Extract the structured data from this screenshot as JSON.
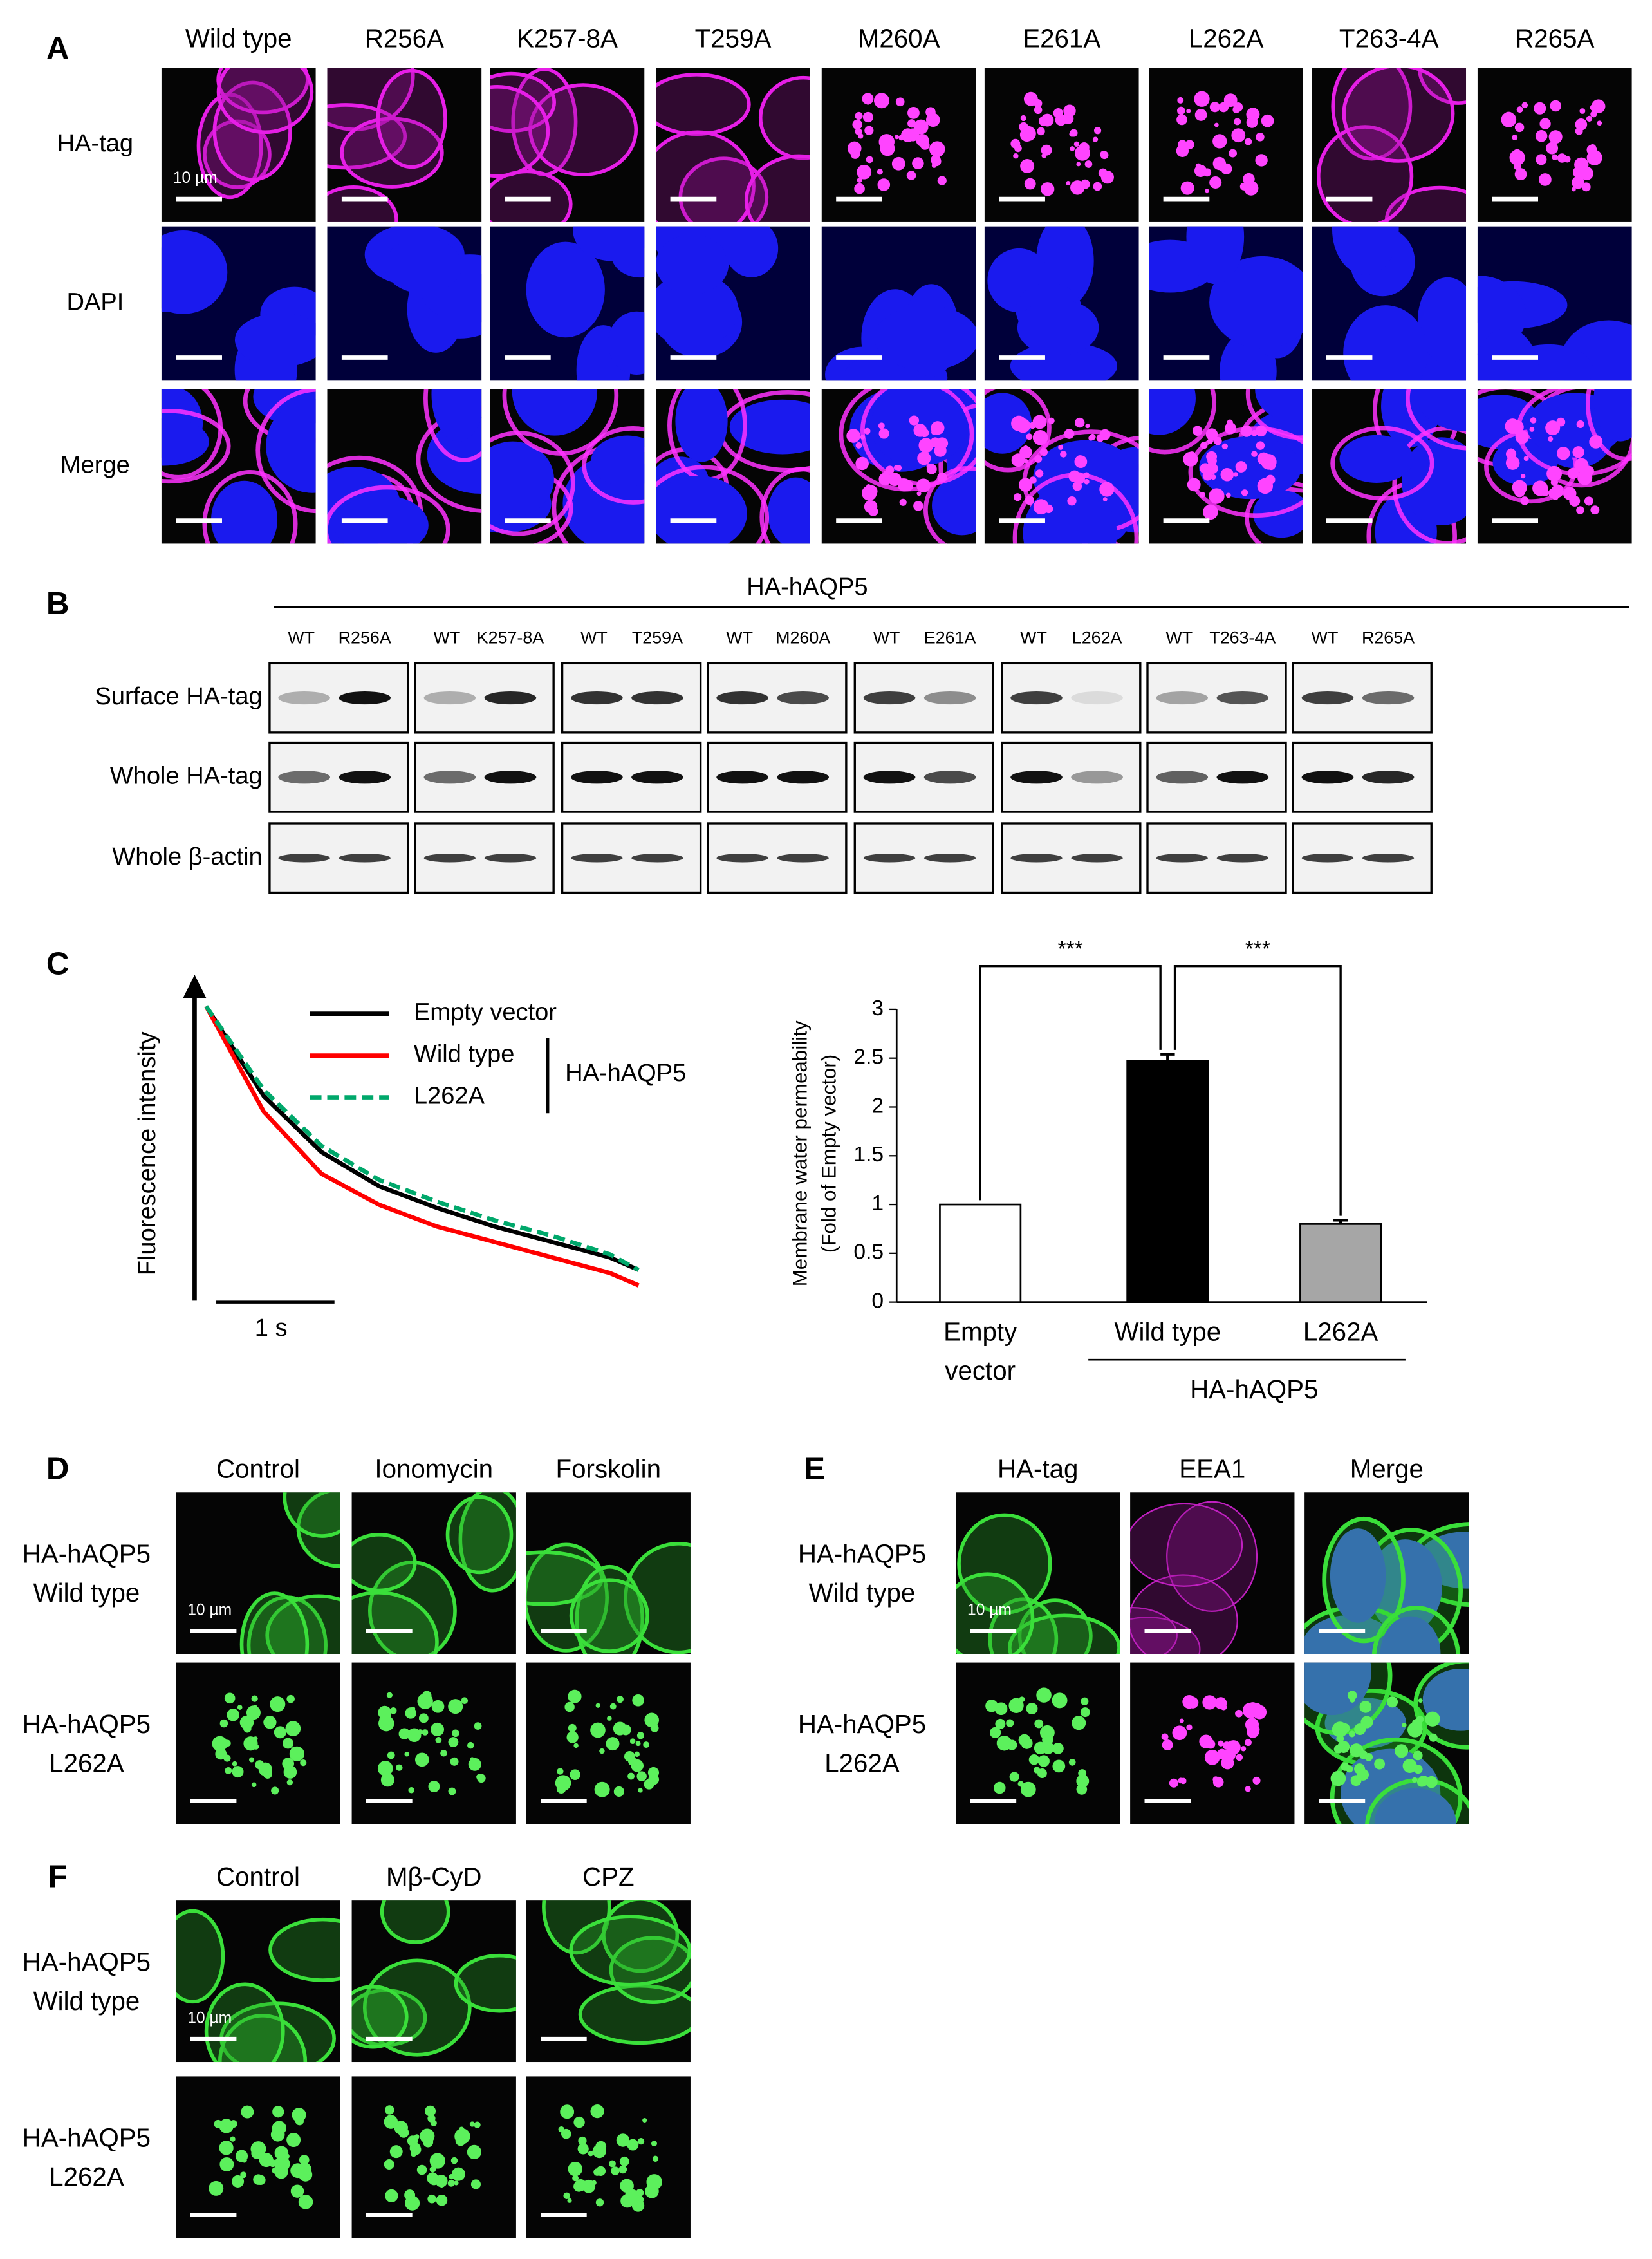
{
  "figure": {
    "A": {
      "label": "A",
      "columns": [
        "Wild type",
        "R256A",
        "K257-8A",
        "T259A",
        "M260A",
        "E261A",
        "L262A",
        "T263-4A",
        "R265A"
      ],
      "rows": [
        "HA-tag",
        "DAPI",
        "Merge"
      ],
      "scale_bar": "10 µm"
    },
    "B": {
      "label": "B",
      "group": "HA-hAQP5",
      "lanes": [
        [
          "WT",
          "R256A"
        ],
        [
          "WT",
          "K257-8A"
        ],
        [
          "WT",
          "T259A"
        ],
        [
          "WT",
          "M260A"
        ],
        [
          "WT",
          "E261A"
        ],
        [
          "WT",
          "L262A"
        ],
        [
          "WT",
          "T263-4A"
        ],
        [
          "WT",
          "R265A"
        ]
      ],
      "rows": [
        "Surface HA-tag",
        "Whole HA-tag",
        "Whole β-actin"
      ]
    },
    "C": {
      "label": "C"
    },
    "D": {
      "label": "D",
      "columns": [
        "Control",
        "Ionomycin",
        "Forskolin"
      ],
      "rows": [
        [
          "HA-hAQP5",
          "Wild type"
        ],
        [
          "HA-hAQP5",
          "L262A"
        ]
      ],
      "scale_bar": "10 µm"
    },
    "E": {
      "label": "E",
      "columns": [
        "HA-tag",
        "EEA1",
        "Merge"
      ],
      "rows": [
        [
          "HA-hAQP5",
          "Wild type"
        ],
        [
          "HA-hAQP5",
          "L262A"
        ]
      ],
      "scale_bar": "10 µm"
    },
    "F": {
      "label": "F",
      "columns": [
        "Control",
        "Mβ-CyD",
        "CPZ"
      ],
      "rows": [
        [
          "HA-hAQP5",
          "Wild type"
        ],
        [
          "HA-hAQP5",
          "L262A"
        ]
      ],
      "scale_bar": "10 µm"
    }
  },
  "chart_data": [
    {
      "type": "line",
      "y_label": "Fluorescence intensity",
      "scale_bar": "1 s",
      "group_label": "HA-hAQP5",
      "x": [
        0,
        0.5,
        1,
        1.5,
        2,
        2.5,
        3,
        3.5,
        3.75
      ],
      "xlim": [
        0,
        3.75
      ],
      "ylim": [
        0,
        1
      ],
      "series": [
        {
          "name": "Empty vector",
          "color": "#000000",
          "dash": false,
          "values": [
            0.94,
            0.65,
            0.47,
            0.36,
            0.29,
            0.23,
            0.18,
            0.13,
            0.09
          ]
        },
        {
          "name": "Wild type",
          "color": "#ff0000",
          "dash": false,
          "values": [
            0.94,
            0.6,
            0.4,
            0.3,
            0.23,
            0.18,
            0.13,
            0.08,
            0.04
          ]
        },
        {
          "name": "L262A",
          "color": "#00a86b",
          "dash": true,
          "values": [
            0.94,
            0.67,
            0.49,
            0.38,
            0.31,
            0.25,
            0.2,
            0.14,
            0.09
          ]
        }
      ]
    },
    {
      "type": "bar",
      "y_label": [
        "Membrane water permeability",
        "(Fold of Empty vector)"
      ],
      "categories": [
        [
          "Empty",
          "vector"
        ],
        [
          "Wild type"
        ],
        [
          "L262A"
        ]
      ],
      "group_label": "HA-hAQP5",
      "values": [
        1,
        2.47,
        0.8
      ],
      "errors": [
        null,
        0.07,
        0.04
      ],
      "colors": [
        "#ffffff",
        "#000000",
        "#a6a6a6"
      ],
      "ylim": [
        0,
        3
      ],
      "yticks": [
        0,
        0.5,
        1,
        1.5,
        2,
        2.5,
        3
      ],
      "annotations": [
        "***",
        "***"
      ]
    }
  ]
}
